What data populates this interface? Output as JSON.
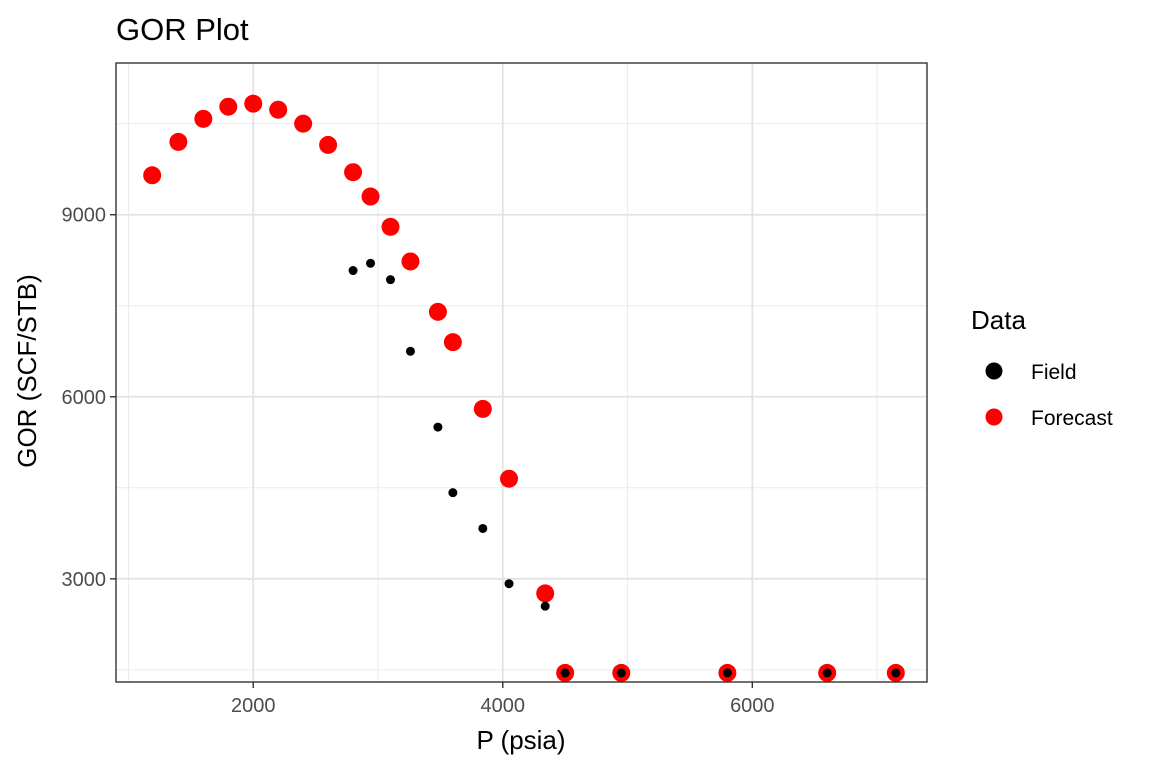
{
  "chart_data": {
    "type": "scatter",
    "title": "GOR Plot",
    "xlabel": "P (psia)",
    "ylabel": "GOR (SCF/STB)",
    "xlim": [
      900,
      7400
    ],
    "ylim": [
      1300,
      11500
    ],
    "xticks": [
      2000,
      4000,
      6000
    ],
    "yticks": [
      3000,
      6000,
      9000
    ],
    "x_minor": [
      1000,
      3000,
      5000,
      7000
    ],
    "y_minor": [
      1500,
      4500,
      7500,
      10500
    ],
    "grid": true,
    "legend": {
      "title": "Data",
      "position": "right"
    },
    "series": [
      {
        "name": "Field",
        "color": "#000000",
        "points": [
          {
            "x": 2800,
            "y": 8080
          },
          {
            "x": 2940,
            "y": 8200
          },
          {
            "x": 3100,
            "y": 7930
          },
          {
            "x": 3260,
            "y": 6750
          },
          {
            "x": 3480,
            "y": 5500
          },
          {
            "x": 3600,
            "y": 4420
          },
          {
            "x": 3840,
            "y": 3830
          },
          {
            "x": 4050,
            "y": 2920
          },
          {
            "x": 4340,
            "y": 2550
          },
          {
            "x": 4500,
            "y": 1450
          },
          {
            "x": 4950,
            "y": 1450
          },
          {
            "x": 5800,
            "y": 1450
          },
          {
            "x": 6600,
            "y": 1450
          },
          {
            "x": 7150,
            "y": 1450
          }
        ]
      },
      {
        "name": "Forecast",
        "color": "#ff0000",
        "points": [
          {
            "x": 1190,
            "y": 9650
          },
          {
            "x": 1400,
            "y": 10200
          },
          {
            "x": 1600,
            "y": 10580
          },
          {
            "x": 1800,
            "y": 10780
          },
          {
            "x": 2000,
            "y": 10830
          },
          {
            "x": 2200,
            "y": 10730
          },
          {
            "x": 2400,
            "y": 10500
          },
          {
            "x": 2600,
            "y": 10150
          },
          {
            "x": 2800,
            "y": 9700
          },
          {
            "x": 2940,
            "y": 9300
          },
          {
            "x": 3100,
            "y": 8800
          },
          {
            "x": 3260,
            "y": 8230
          },
          {
            "x": 3480,
            "y": 7400
          },
          {
            "x": 3600,
            "y": 6900
          },
          {
            "x": 3840,
            "y": 5800
          },
          {
            "x": 4050,
            "y": 4650
          },
          {
            "x": 4340,
            "y": 2760
          },
          {
            "x": 4500,
            "y": 1450
          },
          {
            "x": 4950,
            "y": 1450
          },
          {
            "x": 5800,
            "y": 1450
          },
          {
            "x": 6600,
            "y": 1450
          },
          {
            "x": 7150,
            "y": 1450
          }
        ]
      }
    ]
  }
}
